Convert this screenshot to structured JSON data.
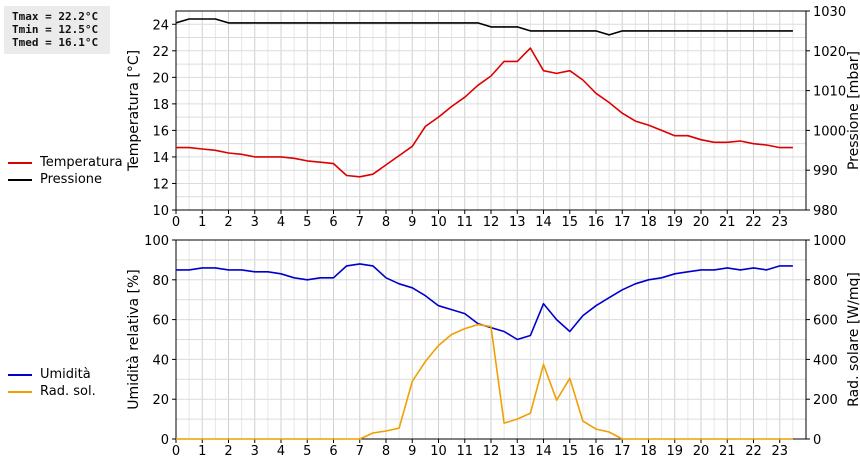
{
  "stats": {
    "tmax": "Tmax = 22.2°C",
    "tmin": "Tmin = 12.5°C",
    "tmed": "Tmed = 16.1°C"
  },
  "legend_top": [
    {
      "label": "Temperatura",
      "color": "#dd0000"
    },
    {
      "label": "Pressione",
      "color": "#000000"
    }
  ],
  "legend_bottom": [
    {
      "label": "Umidità",
      "color": "#0000cc"
    },
    {
      "label": "Rad. sol.",
      "color": "#f0a000"
    }
  ],
  "chart_data": [
    {
      "type": "line",
      "x_ticks": [
        0,
        1,
        2,
        3,
        4,
        5,
        6,
        7,
        8,
        9,
        10,
        11,
        12,
        13,
        14,
        15,
        16,
        17,
        18,
        19,
        20,
        21,
        22,
        23
      ],
      "xlim": [
        0,
        24
      ],
      "ylabel": "Temperatura [°C]",
      "ylim": [
        10,
        25
      ],
      "y_ticks": [
        10,
        12,
        14,
        16,
        18,
        20,
        22,
        24
      ],
      "y2label": "Pressione [mbar]",
      "y2lim": [
        980,
        1030
      ],
      "y2_ticks": [
        980,
        990,
        1000,
        1010,
        1020,
        1030
      ],
      "grid": true,
      "series": [
        {
          "name": "Temperatura",
          "axis": "left",
          "color": "#dd0000",
          "x": [
            0,
            0.5,
            1,
            1.5,
            2,
            2.5,
            3,
            3.5,
            4,
            4.5,
            5,
            5.5,
            6,
            6.5,
            7,
            7.5,
            8,
            8.5,
            9,
            9.5,
            10,
            10.5,
            11,
            11.5,
            12,
            12.5,
            13,
            13.5,
            14,
            14.5,
            15,
            15.5,
            16,
            16.5,
            17,
            17.5,
            18,
            18.5,
            19,
            19.5,
            20,
            20.5,
            21,
            21.5,
            22,
            22.5,
            23,
            23.5
          ],
          "y": [
            14.7,
            14.7,
            14.6,
            14.5,
            14.3,
            14.2,
            14.0,
            14.0,
            14.0,
            13.9,
            13.7,
            13.6,
            13.5,
            12.6,
            12.5,
            12.7,
            13.4,
            14.1,
            14.8,
            16.3,
            17.0,
            17.8,
            18.5,
            19.4,
            20.1,
            21.2,
            21.2,
            22.2,
            20.5,
            20.3,
            20.5,
            19.8,
            18.8,
            18.1,
            17.3,
            16.7,
            16.4,
            16.0,
            15.6,
            15.6,
            15.3,
            15.1,
            15.1,
            15.2,
            15.0,
            14.9,
            14.7,
            14.7
          ]
        },
        {
          "name": "Pressione",
          "axis": "right",
          "color": "#000000",
          "x": [
            0,
            0.5,
            1,
            1.5,
            2,
            2.5,
            3,
            4,
            5,
            6,
            7,
            8,
            9,
            10,
            11,
            11.5,
            12,
            12.5,
            13,
            13.5,
            14,
            15,
            16,
            16.5,
            17,
            18,
            19,
            20,
            21,
            22,
            23,
            23.5
          ],
          "y": [
            1027,
            1028,
            1028,
            1028,
            1027,
            1027,
            1027,
            1027,
            1027,
            1027,
            1027,
            1027,
            1027,
            1027,
            1027,
            1027,
            1026,
            1026,
            1026,
            1025,
            1025,
            1025,
            1025,
            1024,
            1025,
            1025,
            1025,
            1025,
            1025,
            1025,
            1025,
            1025
          ]
        }
      ]
    },
    {
      "type": "line",
      "x_ticks": [
        0,
        1,
        2,
        3,
        4,
        5,
        6,
        7,
        8,
        9,
        10,
        11,
        12,
        13,
        14,
        15,
        16,
        17,
        18,
        19,
        20,
        21,
        22,
        23
      ],
      "xlim": [
        0,
        24
      ],
      "ylabel": "Umidità relativa [%]",
      "ylim": [
        0,
        100
      ],
      "y_ticks": [
        0,
        20,
        40,
        60,
        80,
        100
      ],
      "y2label": "Rad. solare [W/mq]",
      "y2lim": [
        0,
        1000
      ],
      "y2_ticks": [
        0,
        200,
        400,
        600,
        800,
        1000
      ],
      "grid": true,
      "series": [
        {
          "name": "Umidità",
          "axis": "left",
          "color": "#0000cc",
          "x": [
            0,
            0.5,
            1,
            1.5,
            2,
            2.5,
            3,
            3.5,
            4,
            4.5,
            5,
            5.5,
            6,
            6.5,
            7,
            7.5,
            8,
            8.5,
            9,
            9.5,
            10,
            10.5,
            11,
            11.5,
            12,
            12.5,
            13,
            13.5,
            14,
            14.5,
            15,
            15.5,
            16,
            16.5,
            17,
            17.5,
            18,
            18.5,
            19,
            19.5,
            20,
            20.5,
            21,
            21.5,
            22,
            22.5,
            23,
            23.5
          ],
          "y": [
            85,
            85,
            86,
            86,
            85,
            85,
            84,
            84,
            83,
            81,
            80,
            81,
            81,
            87,
            88,
            87,
            81,
            78,
            76,
            72,
            67,
            65,
            63,
            58,
            56,
            54,
            50,
            52,
            68,
            60,
            54,
            62,
            67,
            71,
            75,
            78,
            80,
            81,
            83,
            84,
            85,
            85,
            86,
            85,
            86,
            85,
            87,
            87
          ]
        },
        {
          "name": "Rad. sol.",
          "axis": "right",
          "color": "#f0a000",
          "x": [
            0,
            0.5,
            1,
            1.5,
            2,
            2.5,
            3,
            3.5,
            4,
            4.5,
            5,
            5.5,
            6,
            6.5,
            7,
            7.5,
            8,
            8.5,
            9,
            9.5,
            10,
            10.5,
            11,
            11.5,
            12,
            12.5,
            13,
            13.5,
            14,
            14.5,
            15,
            15.5,
            16,
            16.5,
            17,
            17.5,
            18,
            18.5,
            19,
            19.5,
            20,
            20.5,
            21,
            21.5,
            22,
            22.5,
            23,
            23.5
          ],
          "y": [
            0,
            0,
            0,
            0,
            0,
            0,
            0,
            0,
            0,
            0,
            0,
            0,
            0,
            0,
            0,
            30,
            40,
            55,
            290,
            390,
            470,
            525,
            555,
            575,
            565,
            80,
            100,
            130,
            375,
            195,
            305,
            90,
            50,
            35,
            0,
            0,
            0,
            0,
            0,
            0,
            0,
            0,
            0,
            0,
            0,
            0,
            0,
            0
          ]
        }
      ]
    }
  ]
}
